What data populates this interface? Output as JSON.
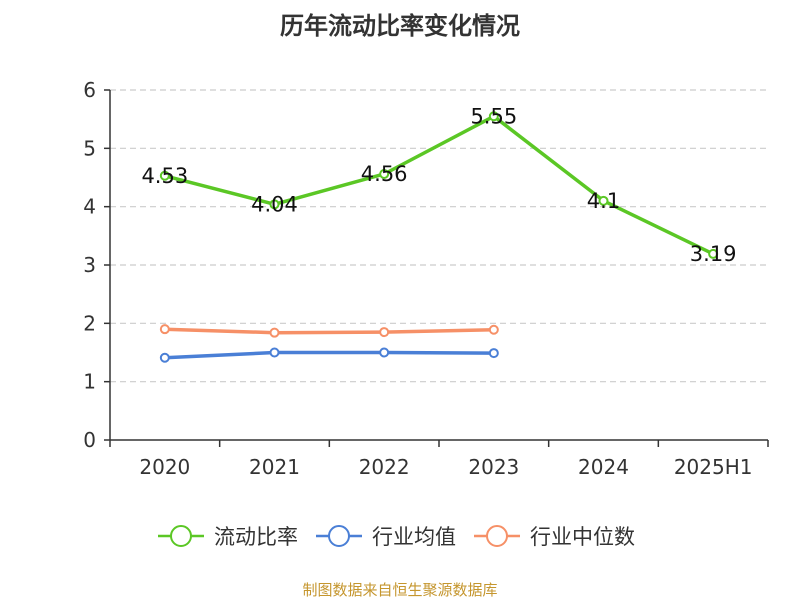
{
  "title": "历年流动比率变化情况",
  "source": "制图数据来自恒生聚源数据库",
  "chart_data": {
    "type": "line",
    "categories": [
      "2020",
      "2021",
      "2022",
      "2023",
      "2024",
      "2025H1"
    ],
    "ylim": [
      0,
      6
    ],
    "yticks": [
      0,
      1,
      2,
      3,
      4,
      5,
      6
    ],
    "grid": true,
    "legend_position": "bottom",
    "series": [
      {
        "name": "流动比率",
        "color": "#5bc725",
        "values": [
          4.53,
          4.04,
          4.56,
          5.55,
          4.1,
          3.19
        ],
        "labels": [
          "4.53",
          "4.04",
          "4.56",
          "5.55",
          "4.1",
          "3.19"
        ]
      },
      {
        "name": "行业均值",
        "color": "#4a7fd6",
        "values": [
          1.41,
          1.5,
          1.5,
          1.49,
          null,
          null
        ]
      },
      {
        "name": "行业中位数",
        "color": "#f69067",
        "values": [
          1.9,
          1.84,
          1.85,
          1.89,
          null,
          null
        ]
      }
    ]
  }
}
